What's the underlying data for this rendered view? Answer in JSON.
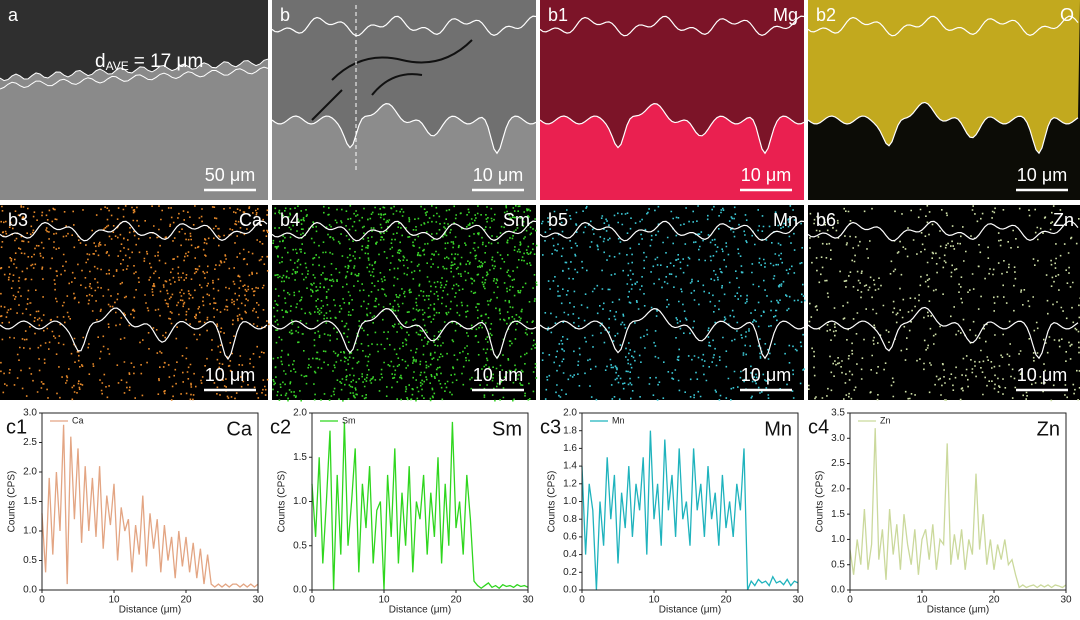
{
  "image_panels": [
    {
      "label": "a",
      "scale_bar": "50 μm",
      "annotation": {
        "main": "d",
        "sub": "AVE",
        "rest": "= 17 μm"
      }
    },
    {
      "label": "b",
      "scale_bar": "10 μm"
    },
    {
      "label": "b1",
      "element": "Mg",
      "scale_bar": "10 μm"
    },
    {
      "label": "b2",
      "element": "O",
      "scale_bar": "10 μm"
    },
    {
      "label": "b3",
      "element": "Ca",
      "scale_bar": "10 μm"
    },
    {
      "label": "b4",
      "element": "Sm",
      "scale_bar": "10 μm"
    },
    {
      "label": "b5",
      "element": "Mn",
      "scale_bar": "10 μm"
    },
    {
      "label": "b6",
      "element": "Zn",
      "scale_bar": "10 μm"
    }
  ],
  "chart_data": [
    {
      "type": "line",
      "panel_label": "c1",
      "element_label": "Ca",
      "x_label": "Distance (μm)",
      "y_label": "Counts (CPS)",
      "xlim": [
        0,
        30
      ],
      "xticks": [
        0,
        10,
        20,
        30
      ],
      "ylim": [
        0,
        3
      ],
      "yticks": [
        {
          "value": 0,
          "label": "0.0"
        },
        {
          "value": 0.5,
          "label": "0.5"
        },
        {
          "value": 1,
          "label": "1.0"
        },
        {
          "value": 1.5,
          "label": "1.5"
        },
        {
          "value": 2,
          "label": "2.0"
        },
        {
          "value": 2.5,
          "label": "2.5"
        },
        {
          "value": 3,
          "label": "3.0"
        }
      ],
      "x": [
        0,
        0.5,
        1,
        1.5,
        2,
        2.5,
        3,
        3.5,
        4,
        4.5,
        5,
        5.5,
        6,
        6.5,
        7,
        7.5,
        8,
        8.5,
        9,
        9.5,
        10,
        10.5,
        11,
        11.5,
        12,
        12.5,
        13,
        13.5,
        14,
        14.5,
        15,
        15.5,
        16,
        16.5,
        17,
        17.5,
        18,
        18.5,
        19,
        19.5,
        20,
        20.5,
        21,
        21.5,
        22,
        22.5,
        23,
        23.5,
        24,
        24.5,
        25,
        25.5,
        26,
        26.5,
        27,
        27.5,
        28,
        28.5,
        29,
        29.5,
        30
      ],
      "series": [
        {
          "name": "Ca",
          "color": "#e3a583",
          "values": [
            1.3,
            0.3,
            1.9,
            0.6,
            2.0,
            1.0,
            2.8,
            0.1,
            2.6,
            1.2,
            2.4,
            0.8,
            2.1,
            1.0,
            1.9,
            0.9,
            2.1,
            0.7,
            1.6,
            1.1,
            1.8,
            0.5,
            1.4,
            1.0,
            1.2,
            0.3,
            1.1,
            0.6,
            1.6,
            0.4,
            1.3,
            0.7,
            1.2,
            0.3,
            1.1,
            0.5,
            0.9,
            0.2,
            1.0,
            0.4,
            0.9,
            0.3,
            0.8,
            0.2,
            0.7,
            0.1,
            0.6,
            0.1,
            0.05,
            0.1,
            0.05,
            0.1,
            0.05,
            0.1,
            0.1,
            0.05,
            0.1,
            0.05,
            0.1,
            0.05,
            0.1
          ]
        }
      ]
    },
    {
      "type": "line",
      "panel_label": "c2",
      "element_label": "Sm",
      "x_label": "Distance (μm)",
      "y_label": "Counts (CPS)",
      "xlim": [
        0,
        30
      ],
      "xticks": [
        0,
        10,
        20,
        30
      ],
      "ylim": [
        0,
        2
      ],
      "yticks": [
        {
          "value": 0,
          "label": "0.0"
        },
        {
          "value": 0.5,
          "label": "0.5"
        },
        {
          "value": 1,
          "label": "1.0"
        },
        {
          "value": 1.5,
          "label": "1.5"
        },
        {
          "value": 2,
          "label": "2.0"
        }
      ],
      "x": [
        0,
        0.5,
        1,
        1.5,
        2,
        2.5,
        3,
        3.5,
        4,
        4.5,
        5,
        5.5,
        6,
        6.5,
        7,
        7.5,
        8,
        8.5,
        9,
        9.5,
        10,
        10.5,
        11,
        11.5,
        12,
        12.5,
        13,
        13.5,
        14,
        14.5,
        15,
        15.5,
        16,
        16.5,
        17,
        17.5,
        18,
        18.5,
        19,
        19.5,
        20,
        20.5,
        21,
        21.5,
        22,
        22.5,
        23,
        23.5,
        24,
        24.5,
        25,
        25.5,
        26,
        26.5,
        27,
        27.5,
        28,
        28.5,
        29,
        29.5,
        30
      ],
      "series": [
        {
          "name": "Sm",
          "color": "#2fd61e",
          "values": [
            1.2,
            0.6,
            1.5,
            0.3,
            1.0,
            1.8,
            0.0,
            1.3,
            0.4,
            1.9,
            0.5,
            1.0,
            1.6,
            0.2,
            1.2,
            0.7,
            1.4,
            0.3,
            0.9,
            1.0,
            0.0,
            1.3,
            0.6,
            1.6,
            0.3,
            1.1,
            0.5,
            1.4,
            0.2,
            1.0,
            0.8,
            1.3,
            0.4,
            1.1,
            0.6,
            1.5,
            0.3,
            1.2,
            0.5,
            1.9,
            0.7,
            1.0,
            0.4,
            1.3,
            0.8,
            0.1,
            0.05,
            0.02,
            0.05,
            0.08,
            0.03,
            0.05,
            0.02,
            0.06,
            0.04,
            0.05,
            0.03,
            0.06,
            0.04,
            0.05,
            0.03
          ]
        }
      ]
    },
    {
      "type": "line",
      "panel_label": "c3",
      "element_label": "Mn",
      "x_label": "Distance (μm)",
      "y_label": "Counts (CPS)",
      "xlim": [
        0,
        30
      ],
      "xticks": [
        0,
        10,
        20,
        30
      ],
      "ylim": [
        0,
        2
      ],
      "yticks": [
        {
          "value": 0,
          "label": "0.0"
        },
        {
          "value": 0.2,
          "label": "0.2"
        },
        {
          "value": 0.4,
          "label": "0.4"
        },
        {
          "value": 0.6,
          "label": "0.6"
        },
        {
          "value": 0.8,
          "label": "0.8"
        },
        {
          "value": 1,
          "label": "1.0"
        },
        {
          "value": 1.2,
          "label": "1.2"
        },
        {
          "value": 1.4,
          "label": "1.4"
        },
        {
          "value": 1.6,
          "label": "1.6"
        },
        {
          "value": 1.8,
          "label": "1.8"
        },
        {
          "value": 2,
          "label": "2.0"
        }
      ],
      "x": [
        0,
        0.5,
        1,
        1.5,
        2,
        2.5,
        3,
        3.5,
        4,
        4.5,
        5,
        5.5,
        6,
        6.5,
        7,
        7.5,
        8,
        8.5,
        9,
        9.5,
        10,
        10.5,
        11,
        11.5,
        12,
        12.5,
        13,
        13.5,
        14,
        14.5,
        15,
        15.5,
        16,
        16.5,
        17,
        17.5,
        18,
        18.5,
        19,
        19.5,
        20,
        20.5,
        21,
        21.5,
        22,
        22.5,
        23,
        23.5,
        24,
        24.5,
        25,
        25.5,
        26,
        26.5,
        27,
        27.5,
        28,
        28.5,
        29,
        29.5,
        30
      ],
      "series": [
        {
          "name": "Mn",
          "color": "#1fb3bd",
          "values": [
            1.4,
            0.4,
            1.2,
            0.9,
            0.0,
            1.0,
            0.5,
            1.5,
            0.8,
            1.3,
            0.3,
            1.1,
            0.7,
            1.4,
            0.6,
            1.2,
            0.9,
            1.5,
            0.4,
            1.8,
            0.8,
            1.2,
            0.5,
            1.7,
            0.9,
            1.3,
            0.6,
            1.6,
            0.8,
            1.0,
            0.5,
            1.6,
            0.9,
            1.2,
            0.6,
            1.4,
            0.8,
            1.1,
            0.5,
            1.3,
            0.7,
            1.0,
            0.6,
            1.2,
            0.9,
            1.6,
            0.0,
            0.1,
            0.05,
            0.12,
            0.08,
            0.1,
            0.05,
            0.15,
            0.08,
            0.1,
            0.06,
            0.12,
            0.05,
            0.1,
            0.08
          ]
        }
      ]
    },
    {
      "type": "line",
      "panel_label": "c4",
      "element_label": "Zn",
      "x_label": "Distance (μm)",
      "y_label": "Counts (CPS)",
      "xlim": [
        0,
        30
      ],
      "xticks": [
        0,
        10,
        20,
        30
      ],
      "ylim": [
        0,
        3.5
      ],
      "yticks": [
        {
          "value": 0,
          "label": "0.0"
        },
        {
          "value": 0.5,
          "label": "0.5"
        },
        {
          "value": 1,
          "label": "1.0"
        },
        {
          "value": 1.5,
          "label": "1.5"
        },
        {
          "value": 2,
          "label": "2.0"
        },
        {
          "value": 2.5,
          "label": "2.5"
        },
        {
          "value": 3,
          "label": "3.0"
        },
        {
          "value": 3.5,
          "label": "3.5"
        }
      ],
      "x": [
        0,
        0.5,
        1,
        1.5,
        2,
        2.5,
        3,
        3.5,
        4,
        4.5,
        5,
        5.5,
        6,
        6.5,
        7,
        7.5,
        8,
        8.5,
        9,
        9.5,
        10,
        10.5,
        11,
        11.5,
        12,
        12.5,
        13,
        13.5,
        14,
        14.5,
        15,
        15.5,
        16,
        16.5,
        17,
        17.5,
        18,
        18.5,
        19,
        19.5,
        20,
        20.5,
        21,
        21.5,
        22,
        22.5,
        23,
        23.5,
        24,
        24.5,
        25,
        25.5,
        26,
        26.5,
        27,
        27.5,
        28,
        28.5,
        29,
        29.5,
        30
      ],
      "series": [
        {
          "name": "Zn",
          "color": "#cbd99c",
          "values": [
            0.8,
            0.3,
            1.0,
            0.5,
            1.6,
            0.4,
            0.9,
            3.2,
            0.6,
            1.2,
            0.2,
            1.6,
            0.7,
            1.3,
            0.4,
            1.5,
            0.9,
            0.5,
            1.2,
            0.3,
            1.0,
            1.2,
            0.6,
            1.3,
            0.4,
            1.0,
            0.9,
            2.9,
            0.5,
            1.1,
            0.6,
            1.2,
            0.4,
            1.0,
            0.7,
            2.3,
            0.8,
            1.5,
            0.5,
            1.0,
            0.4,
            0.9,
            0.6,
            1.0,
            0.5,
            0.6,
            0.3,
            0.05,
            0.1,
            0.05,
            0.08,
            0.1,
            0.05,
            0.1,
            0.06,
            0.1,
            0.05,
            0.1,
            0.08,
            0.05,
            0.1
          ]
        }
      ]
    }
  ]
}
